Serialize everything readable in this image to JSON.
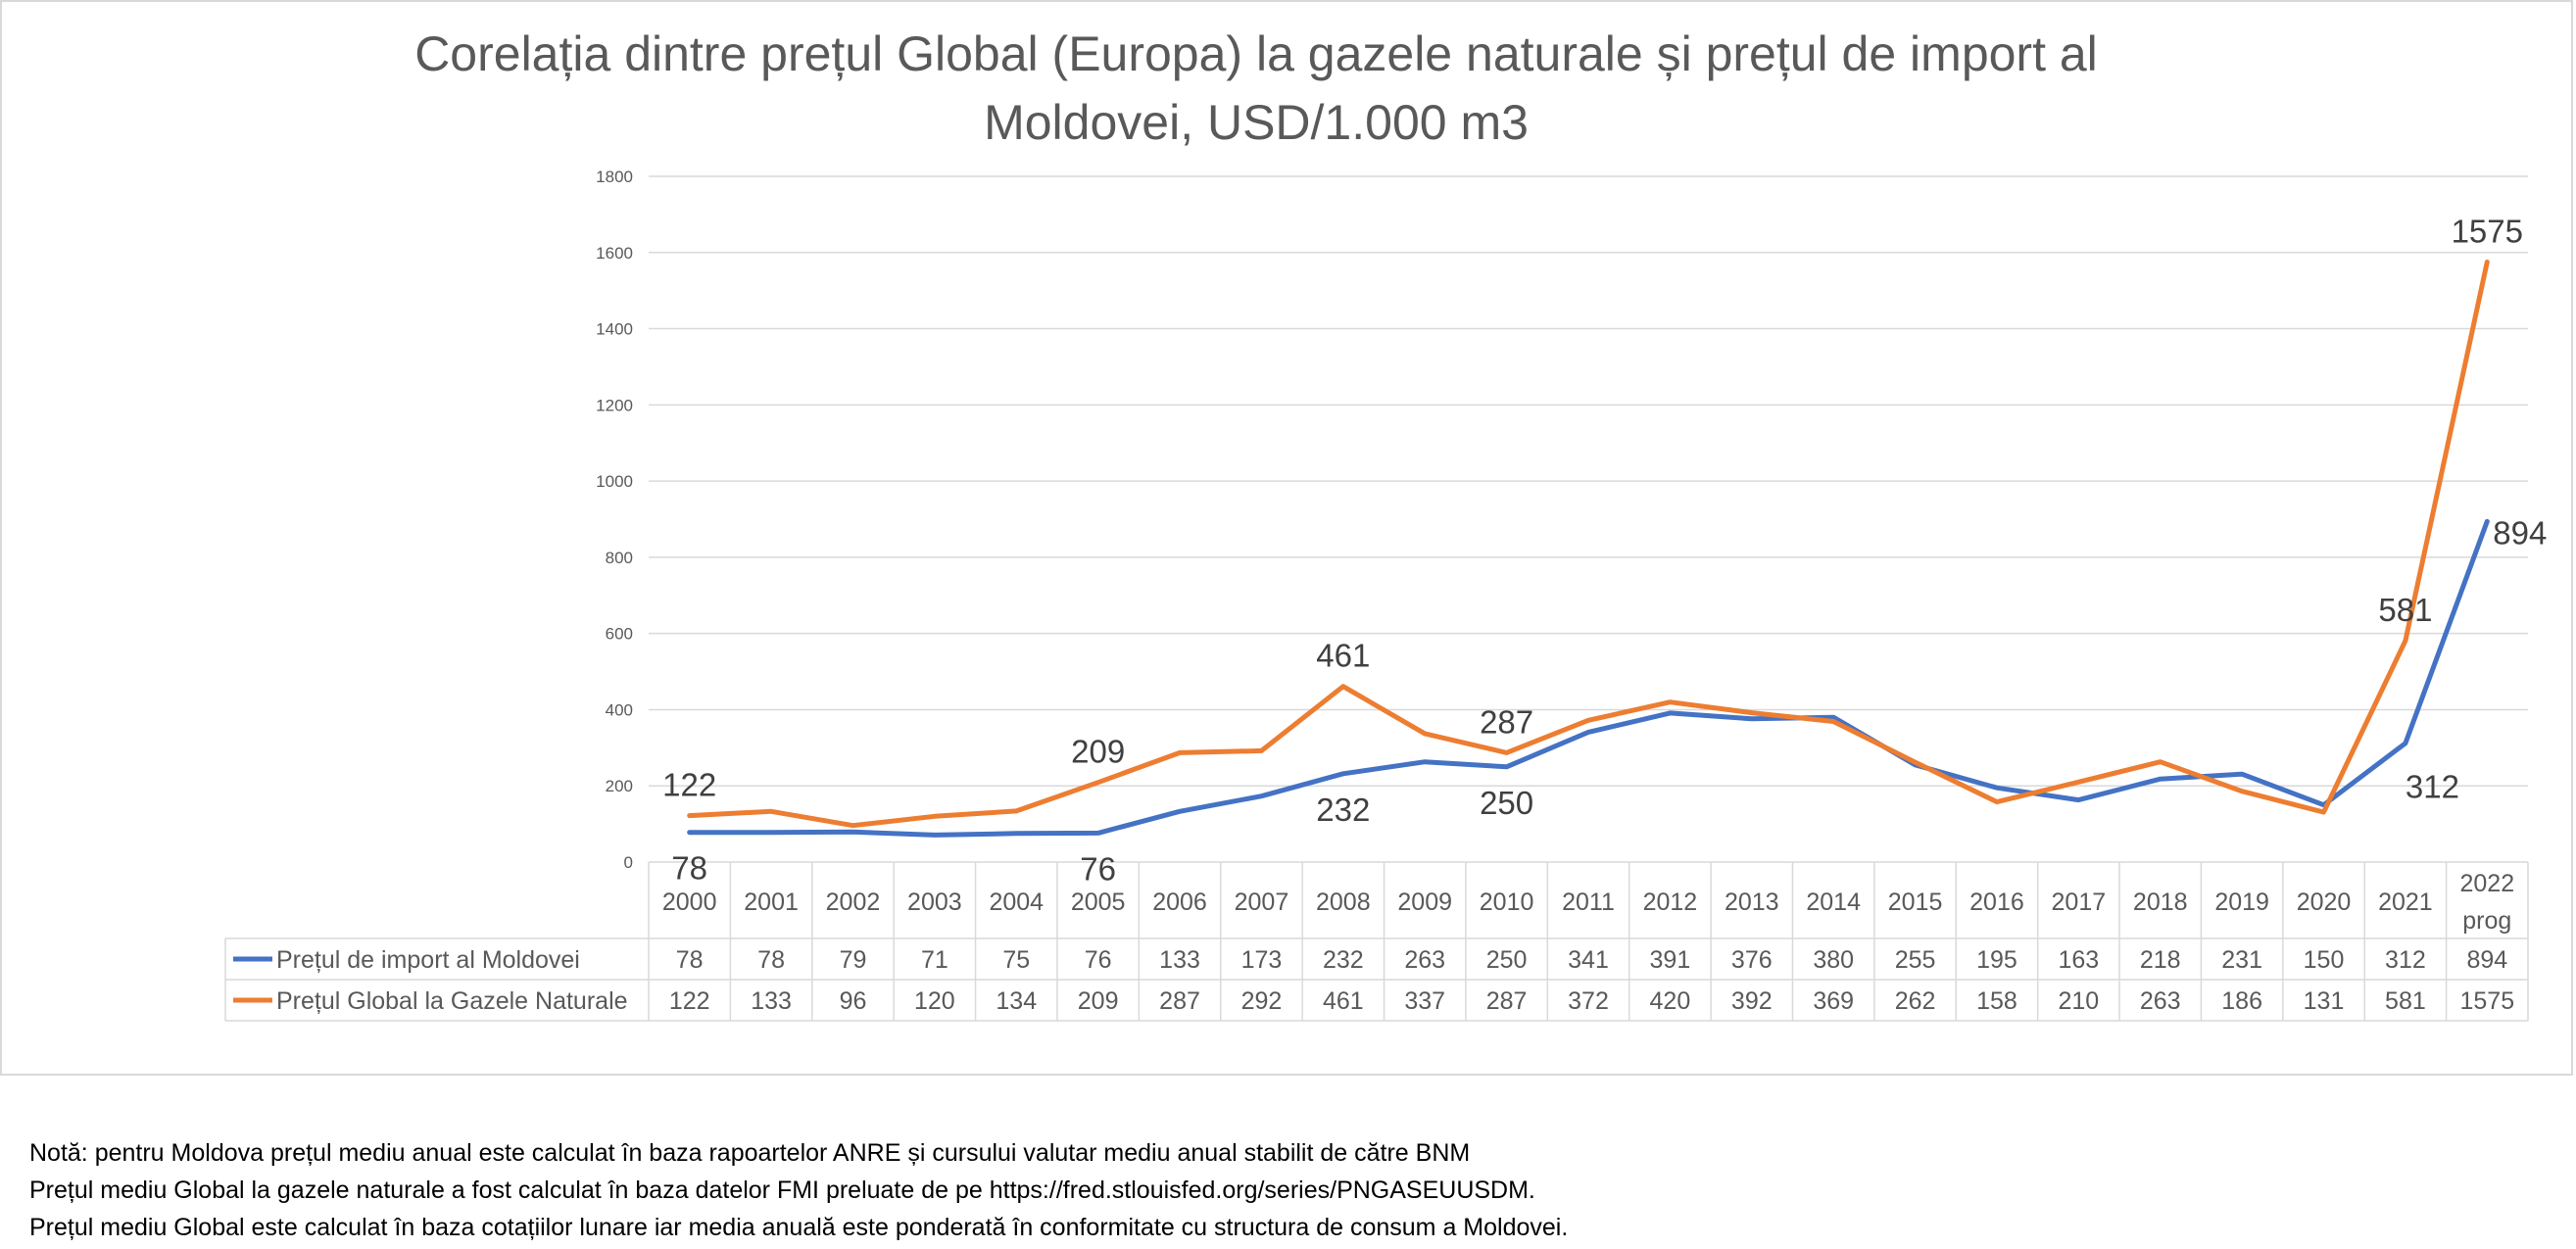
{
  "chart_data": {
    "type": "line",
    "title_lines": [
      "Corelația dintre prețul Global (Europa) la gazele naturale și prețul de import al",
      "Moldovei, USD/1.000 m3"
    ],
    "categories": [
      "2000",
      "2001",
      "2002",
      "2003",
      "2004",
      "2005",
      "2006",
      "2007",
      "2008",
      "2009",
      "2010",
      "2011",
      "2012",
      "2013",
      "2014",
      "2015",
      "2016",
      "2017",
      "2018",
      "2019",
      "2020",
      "2021",
      "2022 prog"
    ],
    "category_lines": [
      [
        "2000"
      ],
      [
        "2001"
      ],
      [
        "2002"
      ],
      [
        "2003"
      ],
      [
        "2004"
      ],
      [
        "2005"
      ],
      [
        "2006"
      ],
      [
        "2007"
      ],
      [
        "2008"
      ],
      [
        "2009"
      ],
      [
        "2010"
      ],
      [
        "2011"
      ],
      [
        "2012"
      ],
      [
        "2013"
      ],
      [
        "2014"
      ],
      [
        "2015"
      ],
      [
        "2016"
      ],
      [
        "2017"
      ],
      [
        "2018"
      ],
      [
        "2019"
      ],
      [
        "2020"
      ],
      [
        "2021"
      ],
      [
        "2022",
        "prog"
      ]
    ],
    "ylim": [
      0,
      1800
    ],
    "yticks": [
      0,
      200,
      400,
      600,
      800,
      1000,
      1200,
      1400,
      1600,
      1800
    ],
    "grid": true,
    "legend": "data-table",
    "series": [
      {
        "name": "Prețul de import al Moldovei",
        "color": "#4472c4",
        "values": [
          78,
          78,
          79,
          71,
          75,
          76,
          133,
          173,
          232,
          263,
          250,
          341,
          391,
          376,
          380,
          255,
          195,
          163,
          218,
          231,
          150,
          312,
          894
        ],
        "labeled_points": [
          {
            "index": 0,
            "text": "78",
            "placement": "below"
          },
          {
            "index": 5,
            "text": "76",
            "placement": "below"
          },
          {
            "index": 8,
            "text": "232",
            "placement": "below"
          },
          {
            "index": 10,
            "text": "250",
            "placement": "below"
          },
          {
            "index": 21,
            "text": "312",
            "placement": "right-below"
          },
          {
            "index": 22,
            "text": "894",
            "placement": "right"
          }
        ]
      },
      {
        "name": "Prețul Global la Gazele Naturale",
        "color": "#ed7d31",
        "values": [
          122,
          133,
          96,
          120,
          134,
          209,
          287,
          292,
          461,
          337,
          287,
          372,
          420,
          392,
          369,
          262,
          158,
          210,
          263,
          186,
          131,
          581,
          1575
        ],
        "labeled_points": [
          {
            "index": 0,
            "text": "122",
            "placement": "above"
          },
          {
            "index": 5,
            "text": "209",
            "placement": "above"
          },
          {
            "index": 8,
            "text": "461",
            "placement": "above"
          },
          {
            "index": 10,
            "text": "287",
            "placement": "above"
          },
          {
            "index": 21,
            "text": "581",
            "placement": "above"
          },
          {
            "index": 22,
            "text": "1575",
            "placement": "above"
          }
        ]
      }
    ]
  },
  "notes": [
    "Notă: pentru Moldova prețul mediu anual este calculat în baza rapoartelor ANRE și cursului valutar mediu anual stabilit de către BNM",
    "Prețul mediu Global la gazele naturale a fost calculat  în baza datelor FMI preluate de pe https://fred.stlouisfed.org/series/PNGASEUUSDM.",
    "Prețul mediu Global este calculat în baza cotațiilor lunare iar media anuală este ponderată în conformitate cu structura de consum a Moldovei."
  ]
}
